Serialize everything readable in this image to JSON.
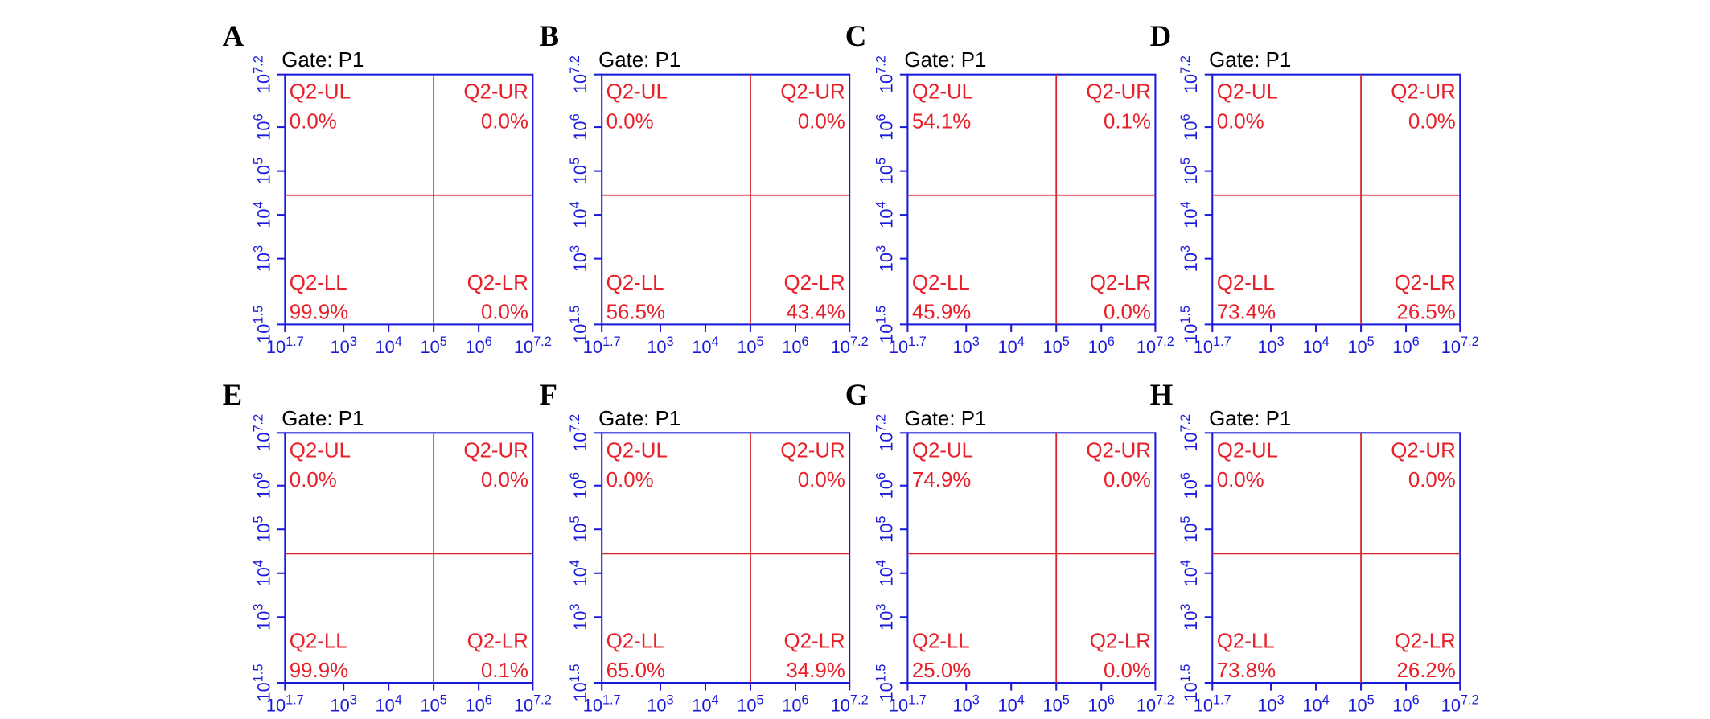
{
  "chart_data": [
    {
      "type": "quadrant",
      "panel": "A",
      "title": "Gate: P1",
      "quadrants": [
        "Q2-UL",
        "Q2-UR",
        "Q2-LL",
        "Q2-LR"
      ],
      "values": [
        0.0,
        0.0,
        99.9,
        0.0
      ],
      "value_labels": [
        "0.0%",
        "0.0%",
        "99.9%",
        "0.0%"
      ],
      "gate_x": 100000,
      "gate_y": 28000,
      "log_scale": true,
      "axis_color": "#1a1adb",
      "gate_color": "#d9232e",
      "label_color": "#e8202a",
      "xlim": [
        50.12,
        15848932
      ],
      "ylim": [
        31.62,
        15848932
      ],
      "xticks": [
        {
          "value": 50.12,
          "label": "10",
          "sup": "1.7"
        },
        {
          "value": 1000,
          "label": "10",
          "sup": "3"
        },
        {
          "value": 10000,
          "label": "10",
          "sup": "4"
        },
        {
          "value": 100000,
          "label": "10",
          "sup": "5"
        },
        {
          "value": 1000000,
          "label": "10",
          "sup": "6"
        },
        {
          "value": 15848932,
          "label": "10",
          "sup": "7.2"
        }
      ],
      "yticks": [
        {
          "value": 31.62,
          "label": "10",
          "sup": "1.5"
        },
        {
          "value": 1000,
          "label": "10",
          "sup": "3"
        },
        {
          "value": 10000,
          "label": "10",
          "sup": "4"
        },
        {
          "value": 100000,
          "label": "10",
          "sup": "5"
        },
        {
          "value": 1000000,
          "label": "10",
          "sup": "6"
        },
        {
          "value": 15848932,
          "label": "10",
          "sup": "7.2"
        }
      ]
    },
    {
      "type": "quadrant",
      "panel": "B",
      "title": "Gate: P1",
      "quadrants": [
        "Q2-UL",
        "Q2-UR",
        "Q2-LL",
        "Q2-LR"
      ],
      "values": [
        0.0,
        0.0,
        56.5,
        43.4
      ],
      "value_labels": [
        "0.0%",
        "0.0%",
        "56.5%",
        "43.4%"
      ],
      "gate_x": 100000,
      "gate_y": 28000,
      "log_scale": true,
      "axis_color": "#1a1adb",
      "gate_color": "#d9232e",
      "label_color": "#e8202a",
      "xlim": [
        50.12,
        15848932
      ],
      "ylim": [
        31.62,
        15848932
      ],
      "xticks": [
        {
          "value": 50.12,
          "label": "10",
          "sup": "1.7"
        },
        {
          "value": 1000,
          "label": "10",
          "sup": "3"
        },
        {
          "value": 10000,
          "label": "10",
          "sup": "4"
        },
        {
          "value": 100000,
          "label": "10",
          "sup": "5"
        },
        {
          "value": 1000000,
          "label": "10",
          "sup": "6"
        },
        {
          "value": 15848932,
          "label": "10",
          "sup": "7.2"
        }
      ],
      "yticks": [
        {
          "value": 31.62,
          "label": "10",
          "sup": "1.5"
        },
        {
          "value": 1000,
          "label": "10",
          "sup": "3"
        },
        {
          "value": 10000,
          "label": "10",
          "sup": "4"
        },
        {
          "value": 100000,
          "label": "10",
          "sup": "5"
        },
        {
          "value": 1000000,
          "label": "10",
          "sup": "6"
        },
        {
          "value": 15848932,
          "label": "10",
          "sup": "7.2"
        }
      ]
    },
    {
      "type": "quadrant",
      "panel": "C",
      "title": "Gate: P1",
      "quadrants": [
        "Q2-UL",
        "Q2-UR",
        "Q2-LL",
        "Q2-LR"
      ],
      "values": [
        54.1,
        0.1,
        45.9,
        0.0
      ],
      "value_labels": [
        "54.1%",
        "0.1%",
        "45.9%",
        "0.0%"
      ],
      "gate_x": 100000,
      "gate_y": 28000,
      "log_scale": true,
      "axis_color": "#1a1adb",
      "gate_color": "#d9232e",
      "label_color": "#e8202a",
      "xlim": [
        50.12,
        15848932
      ],
      "ylim": [
        31.62,
        15848932
      ],
      "xticks": [
        {
          "value": 50.12,
          "label": "10",
          "sup": "1.7"
        },
        {
          "value": 1000,
          "label": "10",
          "sup": "3"
        },
        {
          "value": 10000,
          "label": "10",
          "sup": "4"
        },
        {
          "value": 100000,
          "label": "10",
          "sup": "5"
        },
        {
          "value": 1000000,
          "label": "10",
          "sup": "6"
        },
        {
          "value": 15848932,
          "label": "10",
          "sup": "7.2"
        }
      ],
      "yticks": [
        {
          "value": 31.62,
          "label": "10",
          "sup": "1.5"
        },
        {
          "value": 1000,
          "label": "10",
          "sup": "3"
        },
        {
          "value": 10000,
          "label": "10",
          "sup": "4"
        },
        {
          "value": 100000,
          "label": "10",
          "sup": "5"
        },
        {
          "value": 1000000,
          "label": "10",
          "sup": "6"
        },
        {
          "value": 15848932,
          "label": "10",
          "sup": "7.2"
        }
      ]
    },
    {
      "type": "quadrant",
      "panel": "D",
      "title": "Gate: P1",
      "quadrants": [
        "Q2-UL",
        "Q2-UR",
        "Q2-LL",
        "Q2-LR"
      ],
      "values": [
        0.0,
        0.0,
        73.4,
        26.5
      ],
      "value_labels": [
        "0.0%",
        "0.0%",
        "73.4%",
        "26.5%"
      ],
      "gate_x": 100000,
      "gate_y": 28000,
      "log_scale": true,
      "axis_color": "#1a1adb",
      "gate_color": "#d9232e",
      "label_color": "#e8202a",
      "xlim": [
        50.12,
        15848932
      ],
      "ylim": [
        31.62,
        15848932
      ],
      "xticks": [
        {
          "value": 50.12,
          "label": "10",
          "sup": "1.7"
        },
        {
          "value": 1000,
          "label": "10",
          "sup": "3"
        },
        {
          "value": 10000,
          "label": "10",
          "sup": "4"
        },
        {
          "value": 100000,
          "label": "10",
          "sup": "5"
        },
        {
          "value": 1000000,
          "label": "10",
          "sup": "6"
        },
        {
          "value": 15848932,
          "label": "10",
          "sup": "7.2"
        }
      ],
      "yticks": [
        {
          "value": 31.62,
          "label": "10",
          "sup": "1.5"
        },
        {
          "value": 1000,
          "label": "10",
          "sup": "3"
        },
        {
          "value": 10000,
          "label": "10",
          "sup": "4"
        },
        {
          "value": 100000,
          "label": "10",
          "sup": "5"
        },
        {
          "value": 1000000,
          "label": "10",
          "sup": "6"
        },
        {
          "value": 15848932,
          "label": "10",
          "sup": "7.2"
        }
      ]
    },
    {
      "type": "quadrant",
      "panel": "E",
      "title": "Gate: P1",
      "quadrants": [
        "Q2-UL",
        "Q2-UR",
        "Q2-LL",
        "Q2-LR"
      ],
      "values": [
        0.0,
        0.0,
        99.9,
        0.1
      ],
      "value_labels": [
        "0.0%",
        "0.0%",
        "99.9%",
        "0.1%"
      ],
      "gate_x": 100000,
      "gate_y": 28000,
      "log_scale": true,
      "axis_color": "#1a1adb",
      "gate_color": "#d9232e",
      "label_color": "#e8202a",
      "xlim": [
        50.12,
        15848932
      ],
      "ylim": [
        31.62,
        15848932
      ],
      "xticks": [
        {
          "value": 50.12,
          "label": "10",
          "sup": "1.7"
        },
        {
          "value": 1000,
          "label": "10",
          "sup": "3"
        },
        {
          "value": 10000,
          "label": "10",
          "sup": "4"
        },
        {
          "value": 100000,
          "label": "10",
          "sup": "5"
        },
        {
          "value": 1000000,
          "label": "10",
          "sup": "6"
        },
        {
          "value": 15848932,
          "label": "10",
          "sup": "7.2"
        }
      ],
      "yticks": [
        {
          "value": 31.62,
          "label": "10",
          "sup": "1.5"
        },
        {
          "value": 1000,
          "label": "10",
          "sup": "3"
        },
        {
          "value": 10000,
          "label": "10",
          "sup": "4"
        },
        {
          "value": 100000,
          "label": "10",
          "sup": "5"
        },
        {
          "value": 1000000,
          "label": "10",
          "sup": "6"
        },
        {
          "value": 15848932,
          "label": "10",
          "sup": "7.2"
        }
      ]
    },
    {
      "type": "quadrant",
      "panel": "F",
      "title": "Gate: P1",
      "quadrants": [
        "Q2-UL",
        "Q2-UR",
        "Q2-LL",
        "Q2-LR"
      ],
      "values": [
        0.0,
        0.0,
        65.0,
        34.9
      ],
      "value_labels": [
        "0.0%",
        "0.0%",
        "65.0%",
        "34.9%"
      ],
      "gate_x": 100000,
      "gate_y": 28000,
      "log_scale": true,
      "axis_color": "#1a1adb",
      "gate_color": "#d9232e",
      "label_color": "#e8202a",
      "xlim": [
        50.12,
        15848932
      ],
      "ylim": [
        31.62,
        15848932
      ],
      "xticks": [
        {
          "value": 50.12,
          "label": "10",
          "sup": "1.7"
        },
        {
          "value": 1000,
          "label": "10",
          "sup": "3"
        },
        {
          "value": 10000,
          "label": "10",
          "sup": "4"
        },
        {
          "value": 100000,
          "label": "10",
          "sup": "5"
        },
        {
          "value": 1000000,
          "label": "10",
          "sup": "6"
        },
        {
          "value": 15848932,
          "label": "10",
          "sup": "7.2"
        }
      ],
      "yticks": [
        {
          "value": 31.62,
          "label": "10",
          "sup": "1.5"
        },
        {
          "value": 1000,
          "label": "10",
          "sup": "3"
        },
        {
          "value": 10000,
          "label": "10",
          "sup": "4"
        },
        {
          "value": 100000,
          "label": "10",
          "sup": "5"
        },
        {
          "value": 1000000,
          "label": "10",
          "sup": "6"
        },
        {
          "value": 15848932,
          "label": "10",
          "sup": "7.2"
        }
      ]
    },
    {
      "type": "quadrant",
      "panel": "G",
      "title": "Gate: P1",
      "quadrants": [
        "Q2-UL",
        "Q2-UR",
        "Q2-LL",
        "Q2-LR"
      ],
      "values": [
        74.9,
        0.0,
        25.0,
        0.0
      ],
      "value_labels": [
        "74.9%",
        "0.0%",
        "25.0%",
        "0.0%"
      ],
      "gate_x": 100000,
      "gate_y": 28000,
      "log_scale": true,
      "axis_color": "#1a1adb",
      "gate_color": "#d9232e",
      "label_color": "#e8202a",
      "xlim": [
        50.12,
        15848932
      ],
      "ylim": [
        31.62,
        15848932
      ],
      "xticks": [
        {
          "value": 50.12,
          "label": "10",
          "sup": "1.7"
        },
        {
          "value": 1000,
          "label": "10",
          "sup": "3"
        },
        {
          "value": 10000,
          "label": "10",
          "sup": "4"
        },
        {
          "value": 100000,
          "label": "10",
          "sup": "5"
        },
        {
          "value": 1000000,
          "label": "10",
          "sup": "6"
        },
        {
          "value": 15848932,
          "label": "10",
          "sup": "7.2"
        }
      ],
      "yticks": [
        {
          "value": 31.62,
          "label": "10",
          "sup": "1.5"
        },
        {
          "value": 1000,
          "label": "10",
          "sup": "3"
        },
        {
          "value": 10000,
          "label": "10",
          "sup": "4"
        },
        {
          "value": 100000,
          "label": "10",
          "sup": "5"
        },
        {
          "value": 1000000,
          "label": "10",
          "sup": "6"
        },
        {
          "value": 15848932,
          "label": "10",
          "sup": "7.2"
        }
      ]
    },
    {
      "type": "quadrant",
      "panel": "H",
      "title": "Gate: P1",
      "quadrants": [
        "Q2-UL",
        "Q2-UR",
        "Q2-LL",
        "Q2-LR"
      ],
      "values": [
        0.0,
        0.0,
        73.8,
        26.2
      ],
      "value_labels": [
        "0.0%",
        "0.0%",
        "73.8%",
        "26.2%"
      ],
      "gate_x": 100000,
      "gate_y": 28000,
      "log_scale": true,
      "axis_color": "#1a1adb",
      "gate_color": "#d9232e",
      "label_color": "#e8202a",
      "xlim": [
        50.12,
        15848932
      ],
      "ylim": [
        31.62,
        15848932
      ],
      "xticks": [
        {
          "value": 50.12,
          "label": "10",
          "sup": "1.7"
        },
        {
          "value": 1000,
          "label": "10",
          "sup": "3"
        },
        {
          "value": 10000,
          "label": "10",
          "sup": "4"
        },
        {
          "value": 100000,
          "label": "10",
          "sup": "5"
        },
        {
          "value": 1000000,
          "label": "10",
          "sup": "6"
        },
        {
          "value": 15848932,
          "label": "10",
          "sup": "7.2"
        }
      ],
      "yticks": [
        {
          "value": 31.62,
          "label": "10",
          "sup": "1.5"
        },
        {
          "value": 1000,
          "label": "10",
          "sup": "3"
        },
        {
          "value": 10000,
          "label": "10",
          "sup": "4"
        },
        {
          "value": 100000,
          "label": "10",
          "sup": "5"
        },
        {
          "value": 1000000,
          "label": "10",
          "sup": "6"
        },
        {
          "value": 15848932,
          "label": "10",
          "sup": "7.2"
        }
      ]
    }
  ]
}
